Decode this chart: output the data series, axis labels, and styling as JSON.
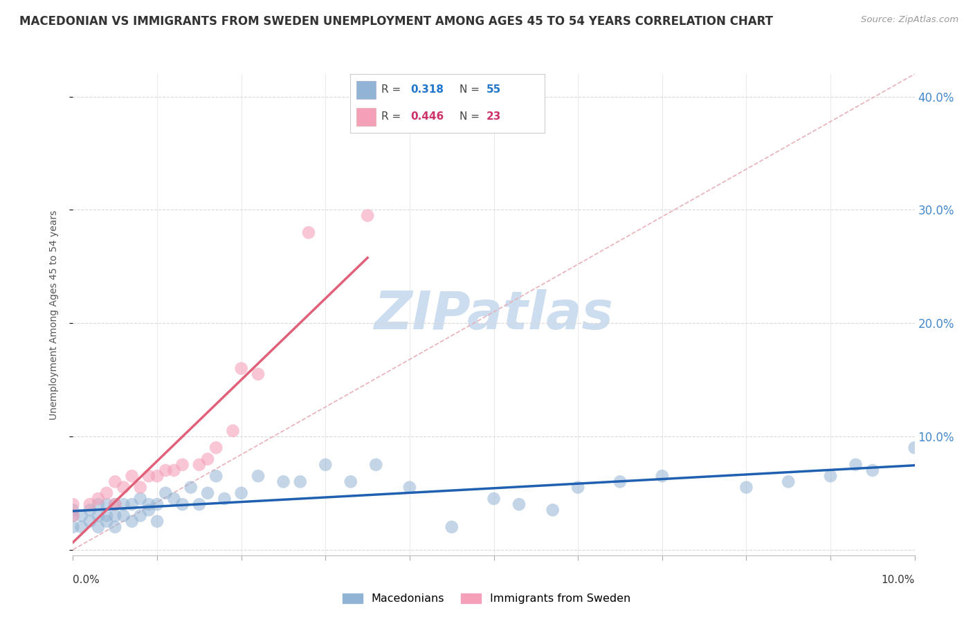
{
  "title": "MACEDONIAN VS IMMIGRANTS FROM SWEDEN UNEMPLOYMENT AMONG AGES 45 TO 54 YEARS CORRELATION CHART",
  "source_text": "Source: ZipAtlas.com",
  "ylabel": "Unemployment Among Ages 45 to 54 years",
  "xlim": [
    0.0,
    0.1
  ],
  "ylim": [
    -0.005,
    0.42
  ],
  "yticks": [
    0.0,
    0.1,
    0.2,
    0.3,
    0.4
  ],
  "ytick_labels": [
    "",
    "10.0%",
    "20.0%",
    "30.0%",
    "40.0%"
  ],
  "xtick_vals": [
    0.0,
    0.01,
    0.02,
    0.03,
    0.04,
    0.05,
    0.06,
    0.07,
    0.08,
    0.09,
    0.1
  ],
  "legend_R1": "0.318",
  "legend_N1": "55",
  "legend_R2": "0.446",
  "legend_N2": "23",
  "blue_scatter_color": "#92b4d4",
  "pink_scatter_color": "#f4a0b8",
  "blue_line_color": "#2060b0",
  "pink_line_color": "#e0607a",
  "diag_color": "#e8b0b8",
  "grid_color": "#d8d8d8",
  "watermark": "ZIPatlas",
  "watermark_color": "#ccddf0",
  "macedonians_x": [
    0.0,
    0.0,
    0.0,
    0.001,
    0.001,
    0.002,
    0.002,
    0.003,
    0.003,
    0.003,
    0.004,
    0.004,
    0.004,
    0.005,
    0.005,
    0.005,
    0.006,
    0.006,
    0.007,
    0.007,
    0.008,
    0.008,
    0.009,
    0.009,
    0.01,
    0.01,
    0.011,
    0.012,
    0.013,
    0.014,
    0.015,
    0.016,
    0.017,
    0.018,
    0.02,
    0.022,
    0.025,
    0.027,
    0.03,
    0.033,
    0.036,
    0.04,
    0.045,
    0.05,
    0.053,
    0.057,
    0.06,
    0.065,
    0.07,
    0.08,
    0.085,
    0.09,
    0.093,
    0.095,
    0.1
  ],
  "macedonians_y": [
    0.02,
    0.03,
    0.035,
    0.02,
    0.03,
    0.025,
    0.035,
    0.02,
    0.03,
    0.04,
    0.025,
    0.03,
    0.04,
    0.02,
    0.03,
    0.04,
    0.03,
    0.04,
    0.025,
    0.04,
    0.03,
    0.045,
    0.035,
    0.04,
    0.025,
    0.04,
    0.05,
    0.045,
    0.04,
    0.055,
    0.04,
    0.05,
    0.065,
    0.045,
    0.05,
    0.065,
    0.06,
    0.06,
    0.075,
    0.06,
    0.075,
    0.055,
    0.02,
    0.045,
    0.04,
    0.035,
    0.055,
    0.06,
    0.065,
    0.055,
    0.06,
    0.065,
    0.075,
    0.07,
    0.09
  ],
  "sweden_x": [
    0.0,
    0.0,
    0.002,
    0.003,
    0.004,
    0.005,
    0.005,
    0.006,
    0.007,
    0.008,
    0.009,
    0.01,
    0.011,
    0.012,
    0.013,
    0.015,
    0.016,
    0.017,
    0.019,
    0.02,
    0.022,
    0.028,
    0.035
  ],
  "sweden_y": [
    0.03,
    0.04,
    0.04,
    0.045,
    0.05,
    0.04,
    0.06,
    0.055,
    0.065,
    0.055,
    0.065,
    0.065,
    0.07,
    0.07,
    0.075,
    0.075,
    0.08,
    0.09,
    0.105,
    0.16,
    0.155,
    0.28,
    0.295
  ]
}
